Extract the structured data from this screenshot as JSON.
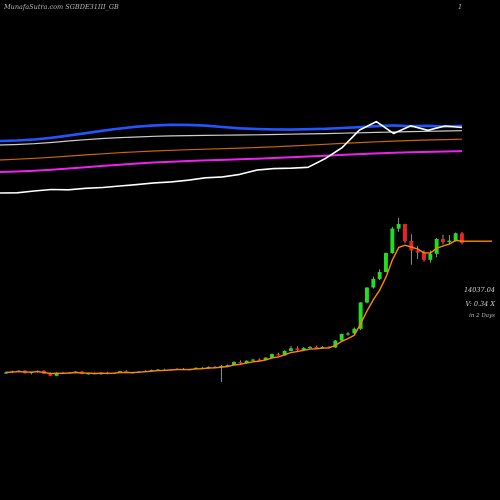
{
  "header": {
    "title": "MunafaSutra.com  SGBDE31III_GB",
    "page_number": "1"
  },
  "info": {
    "price": "14037.04",
    "volume": "V: 0.34  X",
    "period": "in 2 Days"
  },
  "colors": {
    "background": "#000000",
    "up": "#22dd22",
    "down": "#ee2222",
    "price_ma": "#ff8800",
    "blue_ma": "#2255ff",
    "magenta_ma": "#ee22ee",
    "white_line": "#ffffff",
    "orange_ma": "#cc6600"
  },
  "chart_data": [
    {
      "type": "candlestick",
      "title": "",
      "xlabel": "",
      "ylabel": "",
      "price_scale": "unlabeled",
      "grid": false,
      "candles": [
        [
          100,
          100.8,
          99.4,
          100.2
        ],
        [
          100.2,
          101.2,
          99.8,
          100.9
        ],
        [
          100.9,
          101.4,
          100.3,
          101.2
        ],
        [
          101.2,
          101.5,
          99.6,
          99.9
        ],
        [
          99.9,
          100.6,
          99.2,
          100.4
        ],
        [
          100.4,
          101.4,
          100.1,
          101.1
        ],
        [
          101.1,
          101.4,
          99.4,
          99.6
        ],
        [
          99.6,
          100.3,
          98.1,
          98.4
        ],
        [
          98.4,
          100.4,
          98.2,
          100.1
        ],
        [
          100.1,
          100.6,
          99.4,
          99.7
        ],
        [
          99.7,
          100.5,
          99.5,
          100.2
        ],
        [
          100.2,
          101.0,
          99.9,
          100.7
        ],
        [
          100.7,
          101.1,
          99.3,
          99.5
        ],
        [
          99.5,
          100.2,
          99.0,
          99.7
        ],
        [
          99.7,
          100.3,
          99.1,
          99.3
        ],
        [
          99.3,
          100.4,
          99.0,
          100.1
        ],
        [
          100.1,
          100.6,
          99.2,
          99.6
        ],
        [
          99.6,
          100.2,
          99.4,
          100.0
        ],
        [
          100.0,
          101.2,
          99.8,
          100.9
        ],
        [
          100.9,
          101.4,
          99.8,
          100.0
        ],
        [
          100.0,
          100.5,
          99.6,
          100.2
        ],
        [
          100.2,
          101.0,
          99.9,
          100.8
        ],
        [
          100.8,
          101.4,
          100.4,
          101.1
        ],
        [
          101.1,
          101.8,
          100.6,
          101.5
        ],
        [
          101.5,
          102.1,
          101.0,
          101.8
        ],
        [
          101.8,
          102.3,
          101.2,
          101.6
        ],
        [
          101.6,
          102.1,
          101.3,
          101.9
        ],
        [
          101.9,
          102.6,
          101.6,
          102.2
        ],
        [
          102.2,
          102.7,
          101.5,
          101.8
        ],
        [
          101.8,
          102.2,
          101.4,
          102.0
        ],
        [
          102.0,
          103.0,
          101.8,
          102.8
        ],
        [
          102.8,
          103.3,
          102.0,
          102.4
        ],
        [
          102.4,
          103.6,
          102.2,
          103.3
        ],
        [
          103.3,
          103.8,
          102.6,
          103.0
        ],
        [
          103.0,
          104.3,
          95.0,
          103.8
        ],
        [
          103.8,
          104.6,
          103.4,
          104.2
        ],
        [
          104.2,
          106.4,
          104.0,
          105.9
        ],
        [
          105.9,
          106.9,
          105.0,
          105.4
        ],
        [
          105.4,
          106.9,
          104.9,
          106.7
        ],
        [
          106.7,
          107.7,
          106.2,
          107.3
        ],
        [
          107.3,
          108.0,
          106.5,
          107.0
        ],
        [
          107.0,
          108.6,
          106.8,
          108.4
        ],
        [
          108.4,
          110.6,
          108.2,
          110.3
        ],
        [
          110.3,
          111.1,
          109.3,
          109.6
        ],
        [
          109.6,
          112.4,
          109.4,
          112.1
        ],
        [
          112.1,
          114.8,
          111.8,
          113.5
        ],
        [
          113.5,
          114.6,
          112.0,
          112.6
        ],
        [
          112.6,
          114.0,
          112.3,
          113.7
        ],
        [
          113.7,
          114.7,
          113.4,
          114.2
        ],
        [
          114.2,
          114.9,
          113.2,
          113.6
        ],
        [
          113.6,
          114.6,
          113.2,
          114.2
        ],
        [
          114.2,
          114.7,
          113.5,
          113.9
        ],
        [
          113.9,
          118.0,
          113.6,
          117.7
        ],
        [
          117.7,
          121.5,
          117.4,
          121.3
        ],
        [
          121.3,
          122.4,
          120.4,
          121.6
        ],
        [
          121.6,
          124.9,
          121.2,
          124.2
        ],
        [
          124.2,
          138.8,
          123.5,
          138.6
        ],
        [
          138.6,
          147.0,
          138.1,
          146.8
        ],
        [
          146.8,
          152.7,
          146.2,
          151.5
        ],
        [
          151.5,
          156.8,
          150.9,
          155.3
        ],
        [
          155.3,
          166.0,
          155.0,
          165.7
        ],
        [
          165.7,
          180.0,
          165.3,
          179.1
        ],
        [
          179.1,
          184.9,
          177.3,
          181.6
        ],
        [
          181.6,
          181.8,
          171.1,
          172.3
        ],
        [
          172.3,
          176.0,
          159.3,
          167.1
        ],
        [
          167.1,
          169.6,
          162.5,
          165.9
        ],
        [
          165.9,
          167.1,
          160.9,
          162.0
        ],
        [
          162.0,
          167.1,
          160.4,
          165.3
        ],
        [
          165.3,
          173.9,
          163.4,
          173.4
        ],
        [
          173.4,
          175.8,
          170.4,
          171.7
        ],
        [
          171.7,
          175.6,
          170.9,
          172.5
        ],
        [
          172.5,
          176.9,
          171.9,
          176.5
        ],
        [
          176.5,
          177.2,
          170.4,
          171.3
        ]
      ],
      "price_ma": "exponential-short",
      "latest_close": 14037.04,
      "volume_multiple": 0.34,
      "period_days": 2
    },
    {
      "type": "line",
      "title": "",
      "series": [
        {
          "color": "#2255ff",
          "values": [
            141,
            140.5,
            139.5,
            137.8,
            135.6,
            133.2,
            130.7,
            128.5,
            126.7,
            125.4,
            124.8,
            124.9,
            125.6,
            127.0,
            128.3,
            129.0,
            129.4,
            129.6,
            129.2,
            128.8,
            128.0,
            127.2,
            126.2,
            125.4,
            126.2,
            125.8,
            126.6,
            125.9
          ]
        },
        {
          "color": "#cccccc",
          "values": [
            145,
            144.5,
            143.7,
            142.5,
            141.0,
            139.7,
            138.5,
            137.6,
            137.0,
            136.3,
            135.9,
            135.6,
            135.4,
            135.2,
            135.0,
            134.8,
            134.5,
            134.2,
            133.9,
            133.6,
            133.2,
            132.8,
            132.4,
            132.0,
            131.6,
            131.3,
            131.0,
            130.7
          ]
        },
        {
          "color": "#cc6600",
          "values": [
            160,
            159.2,
            158.3,
            157.3,
            156.1,
            154.9,
            153.8,
            152.7,
            151.8,
            151.0,
            150.3,
            149.7,
            149.2,
            148.7,
            148.1,
            147.5,
            146.8,
            146.0,
            145.2,
            144.3,
            143.4,
            142.6,
            141.8,
            141.1,
            140.5,
            140.0,
            139.6,
            139.2
          ]
        },
        {
          "color": "#ee22ee",
          "values": [
            172,
            171.5,
            170.7,
            169.7,
            168.5,
            167.2,
            165.9,
            164.7,
            163.5,
            162.5,
            161.7,
            161.0,
            160.4,
            159.9,
            159.3,
            158.7,
            158.0,
            157.3,
            156.5,
            155.7,
            154.9,
            154.1,
            153.4,
            152.8,
            152.3,
            151.9,
            151.5,
            151.1
          ]
        },
        {
          "color": "#ffffff",
          "values": [
            193,
            192.8,
            191.0,
            189.5,
            189.8,
            188.3,
            187.5,
            186.0,
            184.6,
            182.9,
            181.9,
            180.2,
            177.8,
            176.9,
            174.4,
            170.1,
            168.6,
            168.2,
            167.3,
            158.7,
            147.6,
            130.2,
            121.6,
            133.5,
            125.8,
            130.3,
            126.0,
            127.5
          ]
        }
      ]
    }
  ]
}
